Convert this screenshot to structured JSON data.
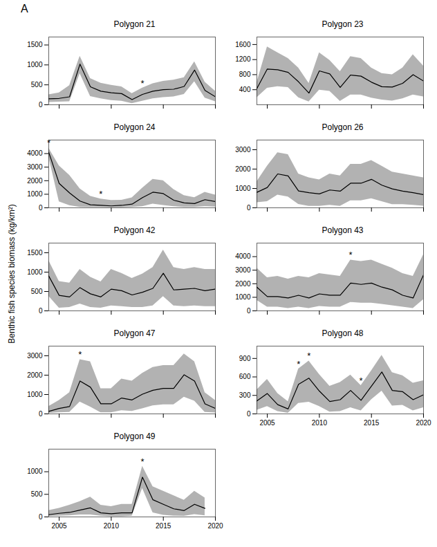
{
  "title": "A",
  "ylabel": "Benthic fish species biomass (kg/km²)",
  "chart_data": [
    {
      "type": "line",
      "title": "Polygon 21",
      "x": [
        2004,
        2005,
        2006,
        2007,
        2008,
        2009,
        2010,
        2011,
        2012,
        2013,
        2014,
        2015,
        2016,
        2017,
        2018,
        2019,
        2020
      ],
      "values": [
        150,
        160,
        200,
        1020,
        450,
        340,
        300,
        280,
        130,
        260,
        340,
        380,
        390,
        460,
        870,
        360,
        200
      ],
      "upper": [
        250,
        300,
        480,
        1220,
        660,
        540,
        490,
        450,
        280,
        420,
        530,
        590,
        620,
        680,
        1080,
        570,
        340
      ],
      "lower": [
        60,
        70,
        80,
        780,
        210,
        150,
        110,
        90,
        30,
        90,
        150,
        180,
        200,
        260,
        580,
        170,
        80
      ],
      "annotations": [
        {
          "x": 2013,
          "text": "*"
        }
      ],
      "xlim": [
        2004,
        2020
      ],
      "xticks": [
        2005,
        2010,
        2015,
        2020
      ],
      "ylim": [
        0,
        1700
      ],
      "yticks": [
        0,
        500,
        1000,
        1500
      ],
      "tick_labels": "y"
    },
    {
      "type": "line",
      "title": "Polygon 23",
      "x": [
        2004,
        2005,
        2006,
        2007,
        2008,
        2009,
        2010,
        2011,
        2012,
        2013,
        2014,
        2015,
        2016,
        2017,
        2018,
        2019,
        2020
      ],
      "values": [
        430,
        950,
        930,
        860,
        610,
        310,
        900,
        820,
        460,
        790,
        760,
        600,
        480,
        470,
        570,
        800,
        630
      ],
      "upper": [
        590,
        1540,
        1380,
        1230,
        980,
        570,
        1380,
        1180,
        880,
        1280,
        1230,
        980,
        830,
        800,
        980,
        1330,
        1030
      ],
      "lower": [
        190,
        440,
        480,
        460,
        190,
        80,
        390,
        360,
        90,
        260,
        260,
        180,
        130,
        100,
        160,
        260,
        210
      ],
      "annotations": [],
      "xlim": [
        2004,
        2020
      ],
      "xticks": [
        2005,
        2010,
        2015,
        2020
      ],
      "ylim": [
        0,
        1800
      ],
      "yticks": [
        400,
        800,
        1200,
        1600
      ],
      "tick_labels": "y"
    },
    {
      "type": "line",
      "title": "Polygon 24",
      "x": [
        2004,
        2005,
        2006,
        2007,
        2008,
        2009,
        2010,
        2011,
        2012,
        2013,
        2014,
        2015,
        2016,
        2017,
        2018,
        2019,
        2020
      ],
      "values": [
        4100,
        1800,
        1100,
        500,
        220,
        180,
        140,
        180,
        270,
        750,
        1150,
        1050,
        560,
        360,
        310,
        600,
        460
      ],
      "upper": [
        4400,
        3100,
        2400,
        1400,
        850,
        650,
        550,
        560,
        740,
        1450,
        2100,
        2000,
        1350,
        900,
        750,
        1150,
        950
      ],
      "lower": [
        3750,
        450,
        170,
        40,
        20,
        20,
        10,
        15,
        40,
        90,
        280,
        180,
        90,
        40,
        40,
        90,
        70
      ],
      "annotations": [
        {
          "x": 2004,
          "text": "*"
        },
        {
          "x": 2009,
          "text": "*"
        }
      ],
      "xlim": [
        2004,
        2020
      ],
      "xticks": [
        2005,
        2010,
        2015,
        2020
      ],
      "ylim": [
        0,
        5000
      ],
      "yticks": [
        0,
        1000,
        2000,
        3000,
        4000
      ],
      "tick_labels": "y"
    },
    {
      "type": "line",
      "title": "Polygon 26",
      "x": [
        2004,
        2005,
        2006,
        2007,
        2008,
        2009,
        2010,
        2011,
        2012,
        2013,
        2014,
        2015,
        2016,
        2017,
        2018,
        2019,
        2020
      ],
      "values": [
        800,
        1050,
        1750,
        1650,
        870,
        780,
        720,
        920,
        860,
        1270,
        1270,
        1470,
        1170,
        980,
        860,
        780,
        680
      ],
      "upper": [
        1350,
        2150,
        2850,
        2750,
        1750,
        1550,
        1450,
        1750,
        1650,
        2250,
        2250,
        2450,
        2150,
        1850,
        1750,
        1650,
        1550
      ],
      "lower": [
        270,
        320,
        660,
        560,
        180,
        80,
        80,
        130,
        80,
        370,
        370,
        470,
        320,
        170,
        170,
        130,
        90
      ],
      "annotations": [],
      "xlim": [
        2004,
        2020
      ],
      "xticks": [
        2005,
        2010,
        2015,
        2020
      ],
      "ylim": [
        0,
        3500
      ],
      "yticks": [
        0,
        1000,
        2000,
        3000
      ],
      "tick_labels": "y"
    },
    {
      "type": "line",
      "title": "Polygon 42",
      "x": [
        2004,
        2005,
        2006,
        2007,
        2008,
        2009,
        2010,
        2011,
        2012,
        2013,
        2014,
        2015,
        2016,
        2017,
        2018,
        2019,
        2020
      ],
      "values": [
        900,
        400,
        360,
        600,
        440,
        360,
        560,
        520,
        410,
        480,
        580,
        970,
        540,
        560,
        580,
        520,
        560
      ],
      "upper": [
        1300,
        760,
        720,
        1070,
        870,
        750,
        1070,
        970,
        840,
        950,
        1120,
        1570,
        1120,
        1070,
        1120,
        1070,
        1070
      ],
      "lower": [
        380,
        70,
        90,
        180,
        90,
        70,
        130,
        110,
        90,
        90,
        130,
        370,
        130,
        110,
        130,
        110,
        110
      ],
      "annotations": [],
      "xlim": [
        2004,
        2020
      ],
      "xticks": [
        2005,
        2010,
        2015,
        2020
      ],
      "ylim": [
        0,
        1750
      ],
      "yticks": [
        0,
        500,
        1000,
        1500
      ],
      "tick_labels": "y"
    },
    {
      "type": "line",
      "title": "Polygon 43",
      "x": [
        2004,
        2005,
        2006,
        2007,
        2008,
        2009,
        2010,
        2011,
        2012,
        2013,
        2014,
        2015,
        2016,
        2017,
        2018,
        2019,
        2020
      ],
      "values": [
        1750,
        1050,
        1050,
        950,
        1150,
        950,
        1250,
        1150,
        1150,
        2050,
        1950,
        2050,
        1750,
        1550,
        1150,
        950,
        2650
      ],
      "upper": [
        3150,
        2450,
        2550,
        2350,
        2550,
        2450,
        2750,
        2650,
        2550,
        3750,
        3650,
        3750,
        3450,
        3150,
        2750,
        2550,
        4150
      ],
      "lower": [
        780,
        280,
        280,
        180,
        280,
        180,
        330,
        280,
        280,
        630,
        580,
        580,
        480,
        380,
        280,
        180,
        830
      ],
      "annotations": [
        {
          "x": 2013,
          "text": "*"
        }
      ],
      "xlim": [
        2004,
        2020
      ],
      "xticks": [
        2005,
        2010,
        2015,
        2020
      ],
      "ylim": [
        0,
        5000
      ],
      "yticks": [
        0,
        1000,
        2000,
        3000,
        4000
      ],
      "tick_labels": "y"
    },
    {
      "type": "line",
      "title": "Polygon 47",
      "x": [
        2004,
        2005,
        2006,
        2007,
        2008,
        2009,
        2010,
        2011,
        2012,
        2013,
        2014,
        2015,
        2016,
        2017,
        2018,
        2019,
        2020
      ],
      "values": [
        130,
        280,
        380,
        1700,
        1380,
        520,
        520,
        820,
        720,
        1020,
        1220,
        1320,
        1320,
        2020,
        1700,
        520,
        280
      ],
      "upper": [
        380,
        700,
        1100,
        2800,
        2700,
        1300,
        1300,
        1800,
        1700,
        2100,
        2400,
        2500,
        2500,
        3100,
        2700,
        1100,
        700
      ],
      "lower": [
        30,
        60,
        80,
        620,
        360,
        60,
        60,
        170,
        130,
        270,
        420,
        470,
        470,
        870,
        660,
        80,
        50
      ],
      "annotations": [
        {
          "x": 2007,
          "text": "*"
        }
      ],
      "xlim": [
        2004,
        2020
      ],
      "xticks": [
        2005,
        2010,
        2015,
        2020
      ],
      "ylim": [
        0,
        3500
      ],
      "yticks": [
        0,
        1000,
        2000,
        3000
      ],
      "tick_labels": "y"
    },
    {
      "type": "line",
      "title": "Polygon 48",
      "x": [
        2004,
        2005,
        2006,
        2007,
        2008,
        2009,
        2010,
        2011,
        2012,
        2013,
        2014,
        2015,
        2016,
        2017,
        2018,
        2019,
        2020
      ],
      "values": [
        210,
        330,
        150,
        80,
        480,
        580,
        370,
        200,
        230,
        380,
        220,
        450,
        680,
        380,
        360,
        230,
        310
      ],
      "upper": [
        390,
        560,
        330,
        200,
        730,
        860,
        640,
        450,
        510,
        630,
        460,
        700,
        950,
        670,
        620,
        500,
        540
      ],
      "lower": [
        60,
        120,
        40,
        10,
        170,
        190,
        120,
        30,
        40,
        100,
        50,
        230,
        370,
        130,
        140,
        50,
        100
      ],
      "annotations": [
        {
          "x": 2008,
          "text": "*"
        },
        {
          "x": 2009,
          "text": "*"
        },
        {
          "x": 2014,
          "text": "*"
        }
      ],
      "xlim": [
        2004,
        2020
      ],
      "xticks": [
        2005,
        2010,
        2015,
        2020
      ],
      "ylim": [
        0,
        1100
      ],
      "yticks": [
        0,
        300,
        600,
        900
      ]
    },
    {
      "type": "line",
      "title": "Polygon 49",
      "x": [
        2004,
        2005,
        2006,
        2007,
        2008,
        2009,
        2010,
        2011,
        2012,
        2013,
        2014,
        2015,
        2016,
        2017,
        2018,
        2019
      ],
      "values": [
        50,
        80,
        100,
        150,
        200,
        90,
        70,
        90,
        90,
        880,
        380,
        280,
        180,
        140,
        280,
        190
      ],
      "upper": [
        140,
        190,
        260,
        340,
        440,
        260,
        230,
        280,
        280,
        1120,
        670,
        570,
        470,
        370,
        570,
        420
      ],
      "lower": [
        10,
        20,
        25,
        45,
        45,
        18,
        8,
        8,
        18,
        630,
        90,
        40,
        20,
        15,
        55,
        25
      ],
      "annotations": [
        {
          "x": 2013,
          "text": "*"
        }
      ],
      "xlim": [
        2004,
        2020
      ],
      "xticks": [
        2005,
        2010,
        2015,
        2020
      ],
      "ylim": [
        0,
        1500
      ],
      "yticks": [
        0,
        500,
        1000
      ]
    }
  ]
}
